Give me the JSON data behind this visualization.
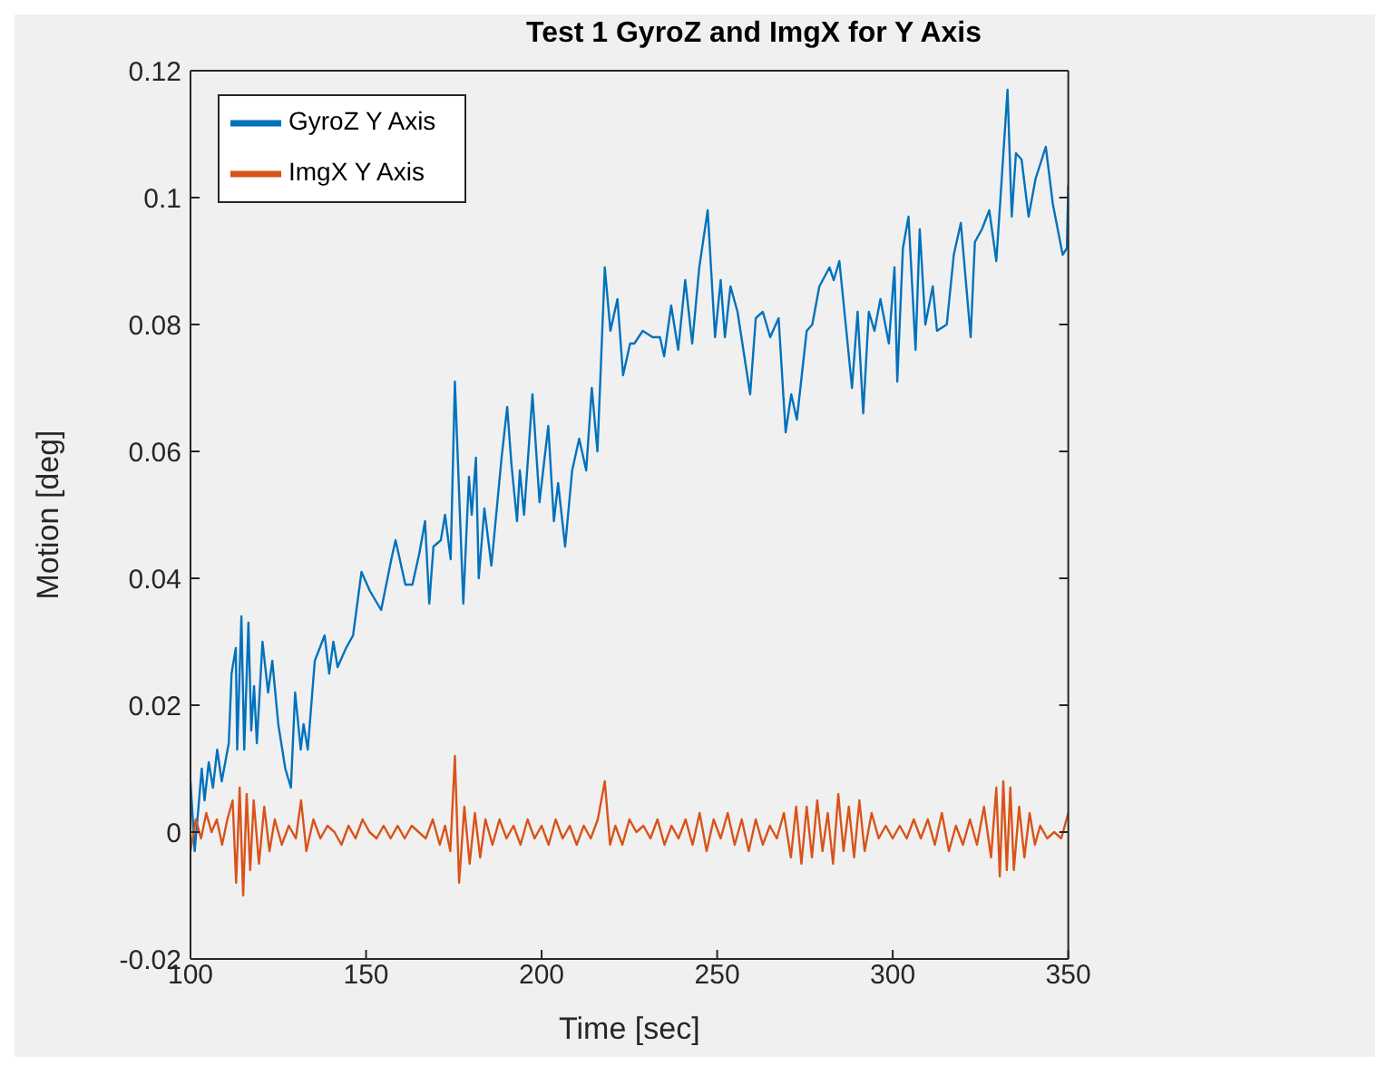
{
  "chart_data": {
    "type": "line",
    "title": "Test 1 GyroZ and ImgX for Y Axis",
    "xlabel": "Time [sec]",
    "ylabel": "Motion [deg]",
    "xlim": [
      100,
      350
    ],
    "xticks": [
      100,
      150,
      200,
      250,
      300,
      350
    ],
    "ylim": [
      -0.02,
      0.12
    ],
    "yticks": [
      -0.02,
      0,
      0.02,
      0.04,
      0.06,
      0.08,
      0.1,
      0.12
    ],
    "grid": false,
    "legend": "top left",
    "marker": "none",
    "line_style": "solid",
    "series": [
      {
        "name": "GyroZ Y Axis",
        "color": "#0072bd",
        "x": [
          100,
          101.2,
          103.2,
          104,
          105.2,
          106.4,
          107.6,
          108.9,
          110.9,
          111.7,
          112.9,
          113.3,
          114.5,
          115.3,
          116.5,
          117.3,
          118.1,
          118.9,
          120.5,
          122.1,
          123.3,
          125,
          127,
          128.6,
          129.8,
          131.4,
          132.2,
          133.4,
          135.4,
          138.2,
          139.5,
          140.7,
          141.9,
          144.3,
          146.3,
          148.7,
          151.1,
          154.3,
          157.2,
          158.4,
          161.2,
          163.2,
          165.2,
          166.8,
          168,
          169.2,
          171.3,
          172.5,
          174.1,
          175.3,
          177.7,
          179.3,
          180.1,
          181.3,
          182.1,
          183.7,
          185.7,
          188.6,
          190.2,
          191.4,
          193,
          193.8,
          195,
          197.4,
          199.4,
          201.9,
          203.5,
          204.7,
          206.7,
          208.7,
          210.7,
          212.7,
          214.3,
          215.9,
          218,
          219.6,
          221.6,
          223.2,
          225.2,
          226.4,
          228.8,
          231.6,
          233.7,
          234.9,
          236.9,
          238.9,
          240.9,
          242.9,
          244.9,
          247.3,
          249.4,
          251,
          252.2,
          253.8,
          255.8,
          259.4,
          261,
          263,
          265.1,
          267.5,
          269.5,
          271.1,
          272.7,
          275.5,
          277.1,
          279.1,
          282,
          283.2,
          284.8,
          286.8,
          288.4,
          290,
          291.6,
          293.2,
          294.8,
          296.5,
          298.9,
          300.5,
          301.3,
          302.9,
          304.5,
          306.5,
          307.7,
          309.3,
          311.4,
          312.6,
          315.4,
          317.4,
          319.4,
          322.2,
          323.4,
          325.4,
          327.5,
          329.5,
          330.7,
          332.7,
          333.9,
          335.1,
          336.7,
          338.7,
          340.7,
          343.6,
          345.6,
          348.4,
          349.6,
          350
        ],
        "values": [
          0.008,
          -0.003,
          0.01,
          0.005,
          0.011,
          0.007,
          0.013,
          0.008,
          0.014,
          0.025,
          0.029,
          0.013,
          0.034,
          0.013,
          0.033,
          0.016,
          0.023,
          0.014,
          0.03,
          0.022,
          0.027,
          0.017,
          0.01,
          0.007,
          0.022,
          0.013,
          0.017,
          0.013,
          0.027,
          0.031,
          0.025,
          0.03,
          0.026,
          0.029,
          0.031,
          0.041,
          0.038,
          0.035,
          0.043,
          0.046,
          0.039,
          0.039,
          0.044,
          0.049,
          0.036,
          0.045,
          0.046,
          0.05,
          0.043,
          0.071,
          0.036,
          0.056,
          0.05,
          0.059,
          0.04,
          0.051,
          0.042,
          0.059,
          0.067,
          0.058,
          0.049,
          0.057,
          0.05,
          0.069,
          0.052,
          0.064,
          0.049,
          0.055,
          0.045,
          0.057,
          0.062,
          0.057,
          0.07,
          0.06,
          0.089,
          0.079,
          0.084,
          0.072,
          0.077,
          0.077,
          0.079,
          0.078,
          0.078,
          0.075,
          0.083,
          0.076,
          0.087,
          0.077,
          0.089,
          0.098,
          0.078,
          0.087,
          0.078,
          0.086,
          0.082,
          0.069,
          0.081,
          0.082,
          0.078,
          0.081,
          0.063,
          0.069,
          0.065,
          0.079,
          0.08,
          0.086,
          0.089,
          0.087,
          0.09,
          0.079,
          0.07,
          0.082,
          0.066,
          0.082,
          0.079,
          0.084,
          0.077,
          0.089,
          0.071,
          0.092,
          0.097,
          0.076,
          0.095,
          0.08,
          0.086,
          0.079,
          0.08,
          0.091,
          0.096,
          0.078,
          0.093,
          0.095,
          0.098,
          0.09,
          0.1,
          0.117,
          0.097,
          0.107,
          0.106,
          0.097,
          0.103,
          0.108,
          0.099,
          0.091,
          0.092,
          0.102
        ]
      },
      {
        "name": "ImgX Y Axis",
        "color": "#d95319",
        "x": [
          100,
          101.5,
          103,
          104.5,
          106,
          107.5,
          109,
          110.5,
          112,
          113,
          114,
          115,
          116,
          117,
          118,
          119.5,
          121,
          122.5,
          124,
          126,
          128,
          130,
          131.5,
          133,
          135,
          137,
          139,
          141,
          143,
          145,
          147,
          149,
          151,
          153,
          155,
          157,
          159,
          161,
          163,
          165,
          167,
          169,
          171,
          172.5,
          174,
          175.3,
          176.5,
          178,
          179.5,
          181,
          182.5,
          184,
          186,
          188,
          190,
          192,
          194,
          196,
          198,
          200,
          202,
          204,
          206,
          208,
          210,
          212,
          214,
          216,
          218,
          219.5,
          221,
          223,
          225,
          227,
          229,
          231,
          233,
          235,
          237,
          239,
          241,
          243,
          245,
          247,
          249,
          251,
          253,
          255,
          257,
          259,
          261,
          263,
          265,
          267,
          269,
          271,
          272.5,
          274,
          275.5,
          277,
          278.5,
          280,
          281.5,
          283,
          284.5,
          286,
          287.5,
          289,
          290.5,
          292,
          294,
          296,
          298,
          300,
          302,
          304,
          306,
          308,
          310,
          312,
          314,
          316,
          318,
          320,
          322,
          324,
          326,
          328,
          329.5,
          330.5,
          331.5,
          332.5,
          333.5,
          334.5,
          336,
          337.5,
          339,
          340.5,
          342,
          344,
          346,
          348,
          350
        ],
        "values": [
          -0.003,
          0.002,
          -0.001,
          0.003,
          0,
          0.002,
          -0.002,
          0.002,
          0.005,
          -0.008,
          0.007,
          -0.01,
          0.006,
          -0.006,
          0.005,
          -0.005,
          0.004,
          -0.003,
          0.002,
          -0.002,
          0.001,
          -0.001,
          0.005,
          -0.003,
          0.002,
          -0.001,
          0.001,
          0,
          -0.002,
          0.001,
          -0.001,
          0.002,
          0,
          -0.001,
          0.001,
          -0.001,
          0.001,
          -0.001,
          0.001,
          0,
          -0.001,
          0.002,
          -0.002,
          0.001,
          -0.003,
          0.012,
          -0.008,
          0.004,
          -0.005,
          0.003,
          -0.004,
          0.002,
          -0.002,
          0.002,
          -0.001,
          0.001,
          -0.002,
          0.002,
          -0.001,
          0.001,
          -0.002,
          0.002,
          -0.001,
          0.001,
          -0.002,
          0.001,
          -0.001,
          0.002,
          0.008,
          -0.002,
          0.001,
          -0.002,
          0.002,
          0,
          0.001,
          -0.001,
          0.002,
          -0.002,
          0.001,
          -0.001,
          0.002,
          -0.002,
          0.003,
          -0.003,
          0.002,
          -0.001,
          0.003,
          -0.002,
          0.002,
          -0.003,
          0.002,
          -0.002,
          0.001,
          -0.001,
          0.003,
          -0.004,
          0.004,
          -0.005,
          0.004,
          -0.004,
          0.005,
          -0.003,
          0.003,
          -0.005,
          0.006,
          -0.003,
          0.004,
          -0.004,
          0.005,
          -0.003,
          0.003,
          -0.001,
          0.001,
          -0.001,
          0.001,
          -0.001,
          0.002,
          -0.001,
          0.002,
          -0.002,
          0.003,
          -0.003,
          0.001,
          -0.002,
          0.002,
          -0.002,
          0.004,
          -0.004,
          0.007,
          -0.007,
          0.008,
          -0.006,
          0.007,
          -0.006,
          0.004,
          -0.004,
          0.003,
          -0.002,
          0.001,
          -0.001,
          0,
          -0.001,
          0.003
        ]
      }
    ]
  }
}
